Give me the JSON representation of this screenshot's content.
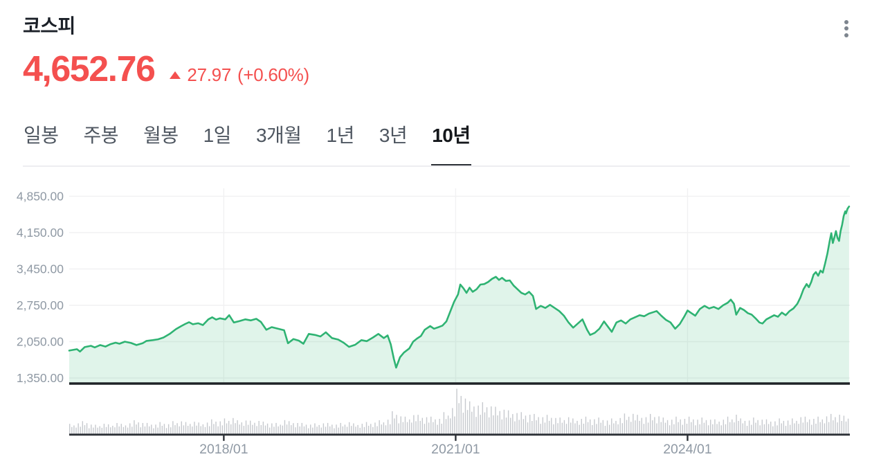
{
  "header": {
    "title": "코스피",
    "price": "4,652.76",
    "change_value": "27.97",
    "change_percent": "(+0.60%)",
    "price_color": "#f4504f",
    "menu_icon": "kebab-menu-icon"
  },
  "tabs": {
    "items": [
      {
        "label": "일봉",
        "active": false
      },
      {
        "label": "주봉",
        "active": false
      },
      {
        "label": "월봉",
        "active": false
      },
      {
        "label": "1일",
        "active": false
      },
      {
        "label": "3개월",
        "active": false
      },
      {
        "label": "1년",
        "active": false
      },
      {
        "label": "3년",
        "active": false
      },
      {
        "label": "10년",
        "active": true
      }
    ]
  },
  "chart_data": {
    "type": "area",
    "title": "코스피 10년 추이",
    "legend": "price line with volume bars below",
    "x_range": [
      2016.0,
      2026.1
    ],
    "ylim": [
      1350,
      4850
    ],
    "grid": true,
    "y_ticks": [
      {
        "label": "4,850.00",
        "value": 4850
      },
      {
        "label": "4,150.00",
        "value": 4150
      },
      {
        "label": "3,450.00",
        "value": 3450
      },
      {
        "label": "2,750.00",
        "value": 2750
      },
      {
        "label": "2,050.00",
        "value": 2050
      },
      {
        "label": "1,350.00",
        "value": 1350
      }
    ],
    "x_ticks": [
      {
        "label": "2018/01",
        "t": 2018.0
      },
      {
        "label": "2021/01",
        "t": 2021.0
      },
      {
        "label": "2024/01",
        "t": 2024.0
      }
    ],
    "series": [
      {
        "name": "코스피",
        "points": [
          [
            2016.0,
            1878
          ],
          [
            2016.1,
            1905
          ],
          [
            2016.14,
            1860
          ],
          [
            2016.2,
            1945
          ],
          [
            2016.28,
            1970
          ],
          [
            2016.33,
            1940
          ],
          [
            2016.4,
            1985
          ],
          [
            2016.47,
            1955
          ],
          [
            2016.53,
            2000
          ],
          [
            2016.6,
            2030
          ],
          [
            2016.65,
            2010
          ],
          [
            2016.72,
            2050
          ],
          [
            2016.8,
            2025
          ],
          [
            2016.87,
            1985
          ],
          [
            2016.95,
            2020
          ],
          [
            2017.0,
            2065
          ],
          [
            2017.08,
            2080
          ],
          [
            2017.15,
            2095
          ],
          [
            2017.22,
            2130
          ],
          [
            2017.3,
            2200
          ],
          [
            2017.38,
            2290
          ],
          [
            2017.45,
            2350
          ],
          [
            2017.5,
            2390
          ],
          [
            2017.55,
            2425
          ],
          [
            2017.6,
            2385
          ],
          [
            2017.67,
            2405
          ],
          [
            2017.73,
            2370
          ],
          [
            2017.8,
            2480
          ],
          [
            2017.85,
            2520
          ],
          [
            2017.9,
            2475
          ],
          [
            2017.95,
            2500
          ],
          [
            2018.02,
            2480
          ],
          [
            2018.07,
            2560
          ],
          [
            2018.13,
            2420
          ],
          [
            2018.2,
            2445
          ],
          [
            2018.28,
            2480
          ],
          [
            2018.35,
            2460
          ],
          [
            2018.42,
            2490
          ],
          [
            2018.48,
            2430
          ],
          [
            2018.55,
            2280
          ],
          [
            2018.62,
            2330
          ],
          [
            2018.7,
            2300
          ],
          [
            2018.78,
            2270
          ],
          [
            2018.83,
            2020
          ],
          [
            2018.9,
            2100
          ],
          [
            2018.97,
            2070
          ],
          [
            2019.03,
            2010
          ],
          [
            2019.1,
            2200
          ],
          [
            2019.18,
            2180
          ],
          [
            2019.25,
            2150
          ],
          [
            2019.32,
            2230
          ],
          [
            2019.4,
            2120
          ],
          [
            2019.48,
            2090
          ],
          [
            2019.55,
            2030
          ],
          [
            2019.62,
            1950
          ],
          [
            2019.7,
            1990
          ],
          [
            2019.78,
            2080
          ],
          [
            2019.85,
            2060
          ],
          [
            2019.93,
            2130
          ],
          [
            2020.0,
            2200
          ],
          [
            2020.07,
            2120
          ],
          [
            2020.12,
            2170
          ],
          [
            2020.16,
            2000
          ],
          [
            2020.2,
            1720
          ],
          [
            2020.23,
            1550
          ],
          [
            2020.28,
            1750
          ],
          [
            2020.33,
            1840
          ],
          [
            2020.4,
            1920
          ],
          [
            2020.45,
            2050
          ],
          [
            2020.5,
            2110
          ],
          [
            2020.55,
            2160
          ],
          [
            2020.6,
            2280
          ],
          [
            2020.67,
            2350
          ],
          [
            2020.72,
            2300
          ],
          [
            2020.78,
            2330
          ],
          [
            2020.83,
            2360
          ],
          [
            2020.88,
            2440
          ],
          [
            2020.93,
            2630
          ],
          [
            2020.98,
            2820
          ],
          [
            2021.03,
            2960
          ],
          [
            2021.06,
            3150
          ],
          [
            2021.1,
            3080
          ],
          [
            2021.14,
            2990
          ],
          [
            2021.18,
            3090
          ],
          [
            2021.22,
            3010
          ],
          [
            2021.27,
            3060
          ],
          [
            2021.32,
            3150
          ],
          [
            2021.37,
            3160
          ],
          [
            2021.42,
            3200
          ],
          [
            2021.47,
            3260
          ],
          [
            2021.52,
            3300
          ],
          [
            2021.56,
            3240
          ],
          [
            2021.6,
            3280
          ],
          [
            2021.65,
            3220
          ],
          [
            2021.7,
            3230
          ],
          [
            2021.75,
            3130
          ],
          [
            2021.8,
            3060
          ],
          [
            2021.85,
            2990
          ],
          [
            2021.9,
            2960
          ],
          [
            2021.95,
            3010
          ],
          [
            2022.0,
            2930
          ],
          [
            2022.04,
            2680
          ],
          [
            2022.1,
            2740
          ],
          [
            2022.16,
            2700
          ],
          [
            2022.22,
            2760
          ],
          [
            2022.28,
            2700
          ],
          [
            2022.34,
            2640
          ],
          [
            2022.4,
            2550
          ],
          [
            2022.46,
            2420
          ],
          [
            2022.52,
            2320
          ],
          [
            2022.58,
            2400
          ],
          [
            2022.64,
            2480
          ],
          [
            2022.7,
            2280
          ],
          [
            2022.74,
            2180
          ],
          [
            2022.8,
            2220
          ],
          [
            2022.86,
            2300
          ],
          [
            2022.92,
            2440
          ],
          [
            2022.97,
            2340
          ],
          [
            2023.02,
            2240
          ],
          [
            2023.08,
            2420
          ],
          [
            2023.14,
            2460
          ],
          [
            2023.2,
            2400
          ],
          [
            2023.26,
            2480
          ],
          [
            2023.32,
            2520
          ],
          [
            2023.38,
            2560
          ],
          [
            2023.44,
            2540
          ],
          [
            2023.5,
            2590
          ],
          [
            2023.56,
            2620
          ],
          [
            2023.6,
            2640
          ],
          [
            2023.66,
            2550
          ],
          [
            2023.72,
            2470
          ],
          [
            2023.78,
            2420
          ],
          [
            2023.84,
            2300
          ],
          [
            2023.9,
            2390
          ],
          [
            2023.96,
            2540
          ],
          [
            2024.0,
            2650
          ],
          [
            2024.05,
            2600
          ],
          [
            2024.1,
            2550
          ],
          [
            2024.16,
            2680
          ],
          [
            2024.22,
            2740
          ],
          [
            2024.28,
            2690
          ],
          [
            2024.34,
            2720
          ],
          [
            2024.4,
            2680
          ],
          [
            2024.46,
            2750
          ],
          [
            2024.52,
            2800
          ],
          [
            2024.56,
            2860
          ],
          [
            2024.6,
            2780
          ],
          [
            2024.63,
            2570
          ],
          [
            2024.68,
            2700
          ],
          [
            2024.73,
            2660
          ],
          [
            2024.78,
            2600
          ],
          [
            2024.83,
            2570
          ],
          [
            2024.88,
            2500
          ],
          [
            2024.93,
            2420
          ],
          [
            2024.97,
            2400
          ],
          [
            2025.02,
            2480
          ],
          [
            2025.07,
            2520
          ],
          [
            2025.12,
            2560
          ],
          [
            2025.17,
            2530
          ],
          [
            2025.22,
            2610
          ],
          [
            2025.27,
            2560
          ],
          [
            2025.32,
            2640
          ],
          [
            2025.37,
            2690
          ],
          [
            2025.42,
            2780
          ],
          [
            2025.46,
            2900
          ],
          [
            2025.5,
            3060
          ],
          [
            2025.54,
            3160
          ],
          [
            2025.57,
            3100
          ],
          [
            2025.6,
            3200
          ],
          [
            2025.63,
            3340
          ],
          [
            2025.66,
            3390
          ],
          [
            2025.69,
            3320
          ],
          [
            2025.72,
            3420
          ],
          [
            2025.75,
            3380
          ],
          [
            2025.78,
            3560
          ],
          [
            2025.81,
            3750
          ],
          [
            2025.84,
            4000
          ],
          [
            2025.86,
            4140
          ],
          [
            2025.88,
            3950
          ],
          [
            2025.9,
            4060
          ],
          [
            2025.92,
            4180
          ],
          [
            2025.94,
            4050
          ],
          [
            2025.96,
            3990
          ],
          [
            2025.98,
            4180
          ],
          [
            2026.0,
            4300
          ],
          [
            2026.02,
            4470
          ],
          [
            2026.04,
            4560
          ],
          [
            2026.05,
            4520
          ],
          [
            2026.07,
            4610
          ],
          [
            2026.09,
            4652.76
          ]
        ]
      }
    ],
    "volume": {
      "note": "relative monthly trading-volume heights 0-1, Jan 2016 - Jan 2026",
      "monthly_relative": [
        0.22,
        0.25,
        0.28,
        0.22,
        0.2,
        0.24,
        0.21,
        0.26,
        0.22,
        0.25,
        0.3,
        0.26,
        0.24,
        0.22,
        0.26,
        0.23,
        0.28,
        0.3,
        0.26,
        0.29,
        0.25,
        0.27,
        0.32,
        0.3,
        0.34,
        0.38,
        0.3,
        0.32,
        0.29,
        0.31,
        0.27,
        0.25,
        0.24,
        0.33,
        0.28,
        0.26,
        0.24,
        0.22,
        0.23,
        0.25,
        0.24,
        0.22,
        0.24,
        0.28,
        0.23,
        0.24,
        0.26,
        0.27,
        0.3,
        0.34,
        0.5,
        0.42,
        0.38,
        0.45,
        0.42,
        0.4,
        0.38,
        0.36,
        0.48,
        0.62,
        1.0,
        0.85,
        0.72,
        0.68,
        0.7,
        0.66,
        0.6,
        0.58,
        0.52,
        0.5,
        0.48,
        0.46,
        0.44,
        0.4,
        0.42,
        0.38,
        0.36,
        0.4,
        0.34,
        0.36,
        0.38,
        0.35,
        0.36,
        0.32,
        0.34,
        0.38,
        0.45,
        0.48,
        0.42,
        0.4,
        0.44,
        0.42,
        0.36,
        0.34,
        0.38,
        0.36,
        0.38,
        0.34,
        0.36,
        0.34,
        0.32,
        0.34,
        0.38,
        0.46,
        0.34,
        0.32,
        0.36,
        0.34,
        0.32,
        0.3,
        0.34,
        0.32,
        0.34,
        0.4,
        0.38,
        0.36,
        0.38,
        0.42,
        0.44,
        0.46,
        0.4
      ]
    },
    "colors": {
      "line": "#2fb373",
      "fill": "rgba(47,179,115,0.15)",
      "grid": "#f1f1f2",
      "separator": "#1f2227",
      "axis": "#2c3036",
      "tick_label": "#8f99a4",
      "volume_bar": "#c6c9ce"
    }
  }
}
